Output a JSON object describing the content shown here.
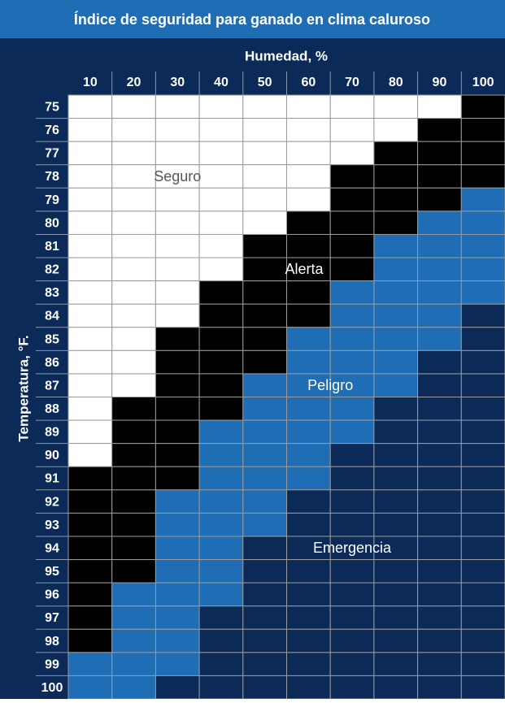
{
  "title": "Índice de seguridad para ganado en clima caluroso",
  "column_header": "Humedad, %",
  "row_header": "Temperatura, °F.",
  "columns": [
    "10",
    "20",
    "30",
    "40",
    "50",
    "60",
    "70",
    "80",
    "90",
    "100"
  ],
  "rows": [
    "75",
    "76",
    "77",
    "78",
    "79",
    "80",
    "81",
    "82",
    "83",
    "84",
    "85",
    "86",
    "87",
    "88",
    "89",
    "90",
    "91",
    "92",
    "93",
    "94",
    "95",
    "96",
    "97",
    "98",
    "99",
    "100"
  ],
  "zones": [
    {
      "code": "S",
      "label": "Seguro",
      "color": "#ffffff",
      "text_color": "#555555"
    },
    {
      "code": "A",
      "label": "Alerta",
      "color": "#000000",
      "text_color": "#ffffff"
    },
    {
      "code": "P",
      "label": "Peligro",
      "color": "#1f6db5",
      "text_color": "#ffffff"
    },
    {
      "code": "E",
      "label": "Emergencia",
      "color": "#0b2a58",
      "text_color": "#ffffff"
    }
  ],
  "cells": [
    [
      "S",
      "S",
      "S",
      "S",
      "S",
      "S",
      "S",
      "S",
      "S",
      "A"
    ],
    [
      "S",
      "S",
      "S",
      "S",
      "S",
      "S",
      "S",
      "S",
      "A",
      "A"
    ],
    [
      "S",
      "S",
      "S",
      "S",
      "S",
      "S",
      "S",
      "A",
      "A",
      "A"
    ],
    [
      "S",
      "S",
      "S",
      "S",
      "S",
      "S",
      "A",
      "A",
      "A",
      "A"
    ],
    [
      "S",
      "S",
      "S",
      "S",
      "S",
      "S",
      "A",
      "A",
      "A",
      "P"
    ],
    [
      "S",
      "S",
      "S",
      "S",
      "S",
      "A",
      "A",
      "A",
      "P",
      "P"
    ],
    [
      "S",
      "S",
      "S",
      "S",
      "A",
      "A",
      "A",
      "P",
      "P",
      "P"
    ],
    [
      "S",
      "S",
      "S",
      "S",
      "A",
      "A",
      "A",
      "P",
      "P",
      "P"
    ],
    [
      "S",
      "S",
      "S",
      "A",
      "A",
      "A",
      "P",
      "P",
      "P",
      "P"
    ],
    [
      "S",
      "S",
      "S",
      "A",
      "A",
      "A",
      "P",
      "P",
      "P",
      "E"
    ],
    [
      "S",
      "S",
      "A",
      "A",
      "A",
      "P",
      "P",
      "P",
      "P",
      "E"
    ],
    [
      "S",
      "S",
      "A",
      "A",
      "A",
      "P",
      "P",
      "P",
      "E",
      "E"
    ],
    [
      "S",
      "S",
      "A",
      "A",
      "P",
      "P",
      "P",
      "P",
      "E",
      "E"
    ],
    [
      "S",
      "A",
      "A",
      "A",
      "P",
      "P",
      "P",
      "E",
      "E",
      "E"
    ],
    [
      "S",
      "A",
      "A",
      "P",
      "P",
      "P",
      "P",
      "E",
      "E",
      "E"
    ],
    [
      "S",
      "A",
      "A",
      "P",
      "P",
      "P",
      "E",
      "E",
      "E",
      "E"
    ],
    [
      "A",
      "A",
      "A",
      "P",
      "P",
      "P",
      "E",
      "E",
      "E",
      "E"
    ],
    [
      "A",
      "A",
      "P",
      "P",
      "P",
      "E",
      "E",
      "E",
      "E",
      "E"
    ],
    [
      "A",
      "A",
      "P",
      "P",
      "P",
      "E",
      "E",
      "E",
      "E",
      "E"
    ],
    [
      "A",
      "A",
      "P",
      "P",
      "E",
      "E",
      "E",
      "E",
      "E",
      "E"
    ],
    [
      "A",
      "A",
      "P",
      "P",
      "E",
      "E",
      "E",
      "E",
      "E",
      "E"
    ],
    [
      "A",
      "P",
      "P",
      "P",
      "E",
      "E",
      "E",
      "E",
      "E",
      "E"
    ],
    [
      "A",
      "P",
      "P",
      "E",
      "E",
      "E",
      "E",
      "E",
      "E",
      "E"
    ],
    [
      "A",
      "P",
      "P",
      "E",
      "E",
      "E",
      "E",
      "E",
      "E",
      "E"
    ],
    [
      "P",
      "P",
      "P",
      "E",
      "E",
      "E",
      "E",
      "E",
      "E",
      "E"
    ],
    [
      "P",
      "P",
      "E",
      "E",
      "E",
      "E",
      "E",
      "E",
      "E",
      "E"
    ]
  ]
}
